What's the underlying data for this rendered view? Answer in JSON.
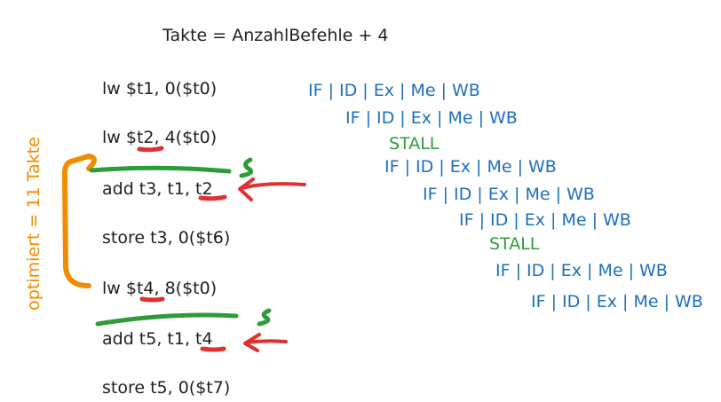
{
  "title": "Takte = AnzahlBefehle + 4",
  "side_note": "optimiert = 11 Takte",
  "instructions": [
    "lw $t1, 0($t0)",
    "lw $t2, 4($t0)",
    "add t3, t1, t2",
    "store t3, 0($t6)",
    "lw $t4, 8($t0)",
    "add t5, t1, t4",
    "store t5, 0($t7)"
  ],
  "pipeline": [
    "IF | ID | Ex | Me | WB",
    "IF | ID | Ex | Me | WB",
    "STALL",
    "IF | ID | Ex | Me | WB",
    "IF | ID | Ex | Me | WB",
    "IF | ID | Ex | Me | WB",
    "STALL",
    "IF | ID | Ex | Me | WB",
    "IF | ID | Ex | Me | WB"
  ],
  "colors": {
    "pipeline": "#1e6fbf",
    "stall": "#2e9b3a",
    "note": "#f08c00",
    "hazard": "#e03030"
  }
}
